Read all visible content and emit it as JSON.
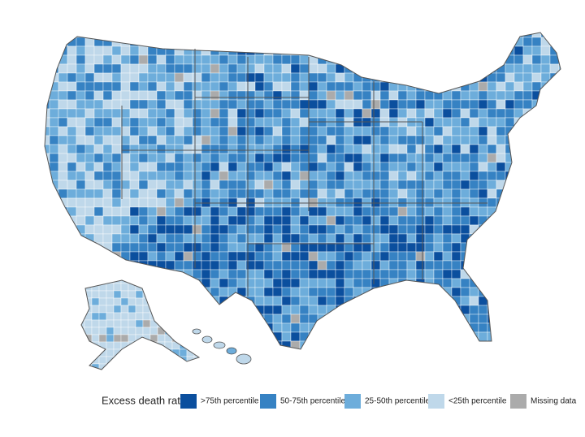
{
  "legend": {
    "title": "Excess death rate",
    "items": [
      {
        "label": ">75th percentile",
        "color": "#0b4f9e"
      },
      {
        "label": "50-75th percentile",
        "color": "#3682c3"
      },
      {
        "label": "25-50th percentile",
        "color": "#6daddb"
      },
      {
        "label": "<25th percentile",
        "color": "#bfd8ea"
      },
      {
        "label": "Missing data",
        "color": "#ababab"
      }
    ]
  }
}
